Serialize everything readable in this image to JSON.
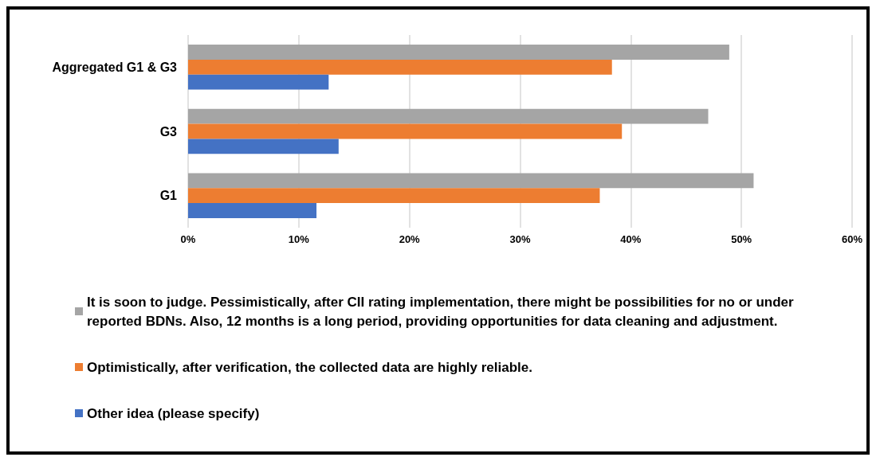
{
  "chart_data": {
    "type": "bar",
    "orientation": "horizontal",
    "categories": [
      "Aggregated G1 & G3",
      "G3",
      "G1"
    ],
    "series": [
      {
        "name": "It is soon to judge. Pessimistically, after CII rating implementation, there might be possibilities for no or under reported BDNs. Also, 12 months is a long period, providing opportunities for data cleaning and adjustment.",
        "color": "#a5a5a5",
        "values": [
          48.9,
          47.0,
          51.1
        ]
      },
      {
        "name": "Optimistically, after verification, the collected data are highly reliable.",
        "color": "#ed7d31",
        "values": [
          38.3,
          39.2,
          37.2
        ]
      },
      {
        "name": "Other idea (please specify)",
        "color": "#4472c4",
        "values": [
          12.7,
          13.6,
          11.6
        ]
      }
    ],
    "xlim": [
      0,
      60
    ],
    "xticks": [
      {
        "value": 0,
        "label": "0%"
      },
      {
        "value": 10,
        "label": "10%"
      },
      {
        "value": 20,
        "label": "20%"
      },
      {
        "value": 30,
        "label": "30%"
      },
      {
        "value": 40,
        "label": "40%"
      },
      {
        "value": 50,
        "label": "50%"
      },
      {
        "value": 60,
        "label": "60%"
      }
    ],
    "grid": "x",
    "legend": "bottom"
  }
}
